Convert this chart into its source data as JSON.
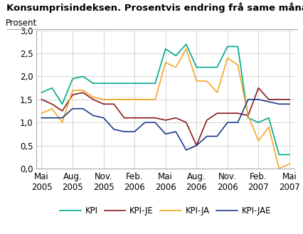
{
  "title": "Konsumprisindeksen. Prosentvis endring frå same månad året før",
  "ylabel": "Prosent",
  "ylim": [
    0.0,
    3.0
  ],
  "yticks": [
    0.0,
    0.5,
    1.0,
    1.5,
    2.0,
    2.5,
    3.0
  ],
  "ytick_labels": [
    "0,0",
    "0,5",
    "1,0",
    "1,5",
    "2,0",
    "2,5",
    "3,0"
  ],
  "xtick_labels": [
    "Mai\n2005",
    "Aug.\n2005",
    "Nov.\n2005",
    "Feb.\n2006",
    "Mai\n2006",
    "Aug.\n2006",
    "Nov.\n2006",
    "Feb.\n2007",
    "Mai\n2007"
  ],
  "xtick_positions": [
    0,
    3,
    6,
    9,
    12,
    15,
    18,
    21,
    24
  ],
  "series": {
    "KPI": {
      "color": "#00A88E",
      "x": [
        0,
        1,
        2,
        3,
        4,
        5,
        6,
        7,
        8,
        9,
        10,
        11,
        12,
        13,
        14,
        15,
        16,
        17,
        18,
        19,
        20,
        21,
        22,
        23,
        24
      ],
      "y": [
        1.65,
        1.75,
        1.4,
        1.95,
        2.0,
        1.85,
        1.85,
        1.85,
        1.85,
        1.85,
        1.85,
        1.85,
        2.6,
        2.45,
        2.7,
        2.2,
        2.2,
        2.2,
        2.65,
        2.65,
        1.1,
        1.0,
        1.1,
        0.3,
        0.3
      ]
    },
    "KPI-JE": {
      "color": "#8B1A1A",
      "x": [
        0,
        1,
        2,
        3,
        4,
        5,
        6,
        7,
        8,
        9,
        10,
        11,
        12,
        13,
        14,
        15,
        16,
        17,
        18,
        19,
        20,
        21,
        22,
        23,
        24
      ],
      "y": [
        1.5,
        1.4,
        1.25,
        1.6,
        1.65,
        1.5,
        1.4,
        1.4,
        1.1,
        1.1,
        1.1,
        1.1,
        1.05,
        1.1,
        1.0,
        0.5,
        1.05,
        1.2,
        1.2,
        1.2,
        1.15,
        1.75,
        1.5,
        1.5,
        1.5
      ]
    },
    "KPI-JA": {
      "color": "#F5A623",
      "x": [
        0,
        1,
        2,
        3,
        4,
        5,
        6,
        7,
        8,
        9,
        10,
        11,
        12,
        13,
        14,
        15,
        16,
        17,
        18,
        19,
        20,
        21,
        22,
        23,
        24
      ],
      "y": [
        1.2,
        1.3,
        1.0,
        1.7,
        1.7,
        1.55,
        1.5,
        1.5,
        1.5,
        1.5,
        1.5,
        1.5,
        2.3,
        2.2,
        2.6,
        1.9,
        1.9,
        1.65,
        2.4,
        2.25,
        1.15,
        0.6,
        0.9,
        0.0,
        0.1
      ]
    },
    "KPI-JAE": {
      "color": "#1A3A8B",
      "x": [
        0,
        1,
        2,
        3,
        4,
        5,
        6,
        7,
        8,
        9,
        10,
        11,
        12,
        13,
        14,
        15,
        16,
        17,
        18,
        19,
        20,
        21,
        22,
        23,
        24
      ],
      "y": [
        1.1,
        1.1,
        1.1,
        1.3,
        1.3,
        1.15,
        1.1,
        0.85,
        0.8,
        0.8,
        1.0,
        1.0,
        0.75,
        0.8,
        0.4,
        0.5,
        0.7,
        0.7,
        1.0,
        1.0,
        1.5,
        1.5,
        1.45,
        1.4,
        1.4
      ]
    }
  },
  "background_color": "#ffffff",
  "grid_color": "#cccccc",
  "title_fontsize": 9.5,
  "legend_fontsize": 8.5,
  "axis_fontsize": 8.5,
  "ylabel_fontsize": 8.5
}
